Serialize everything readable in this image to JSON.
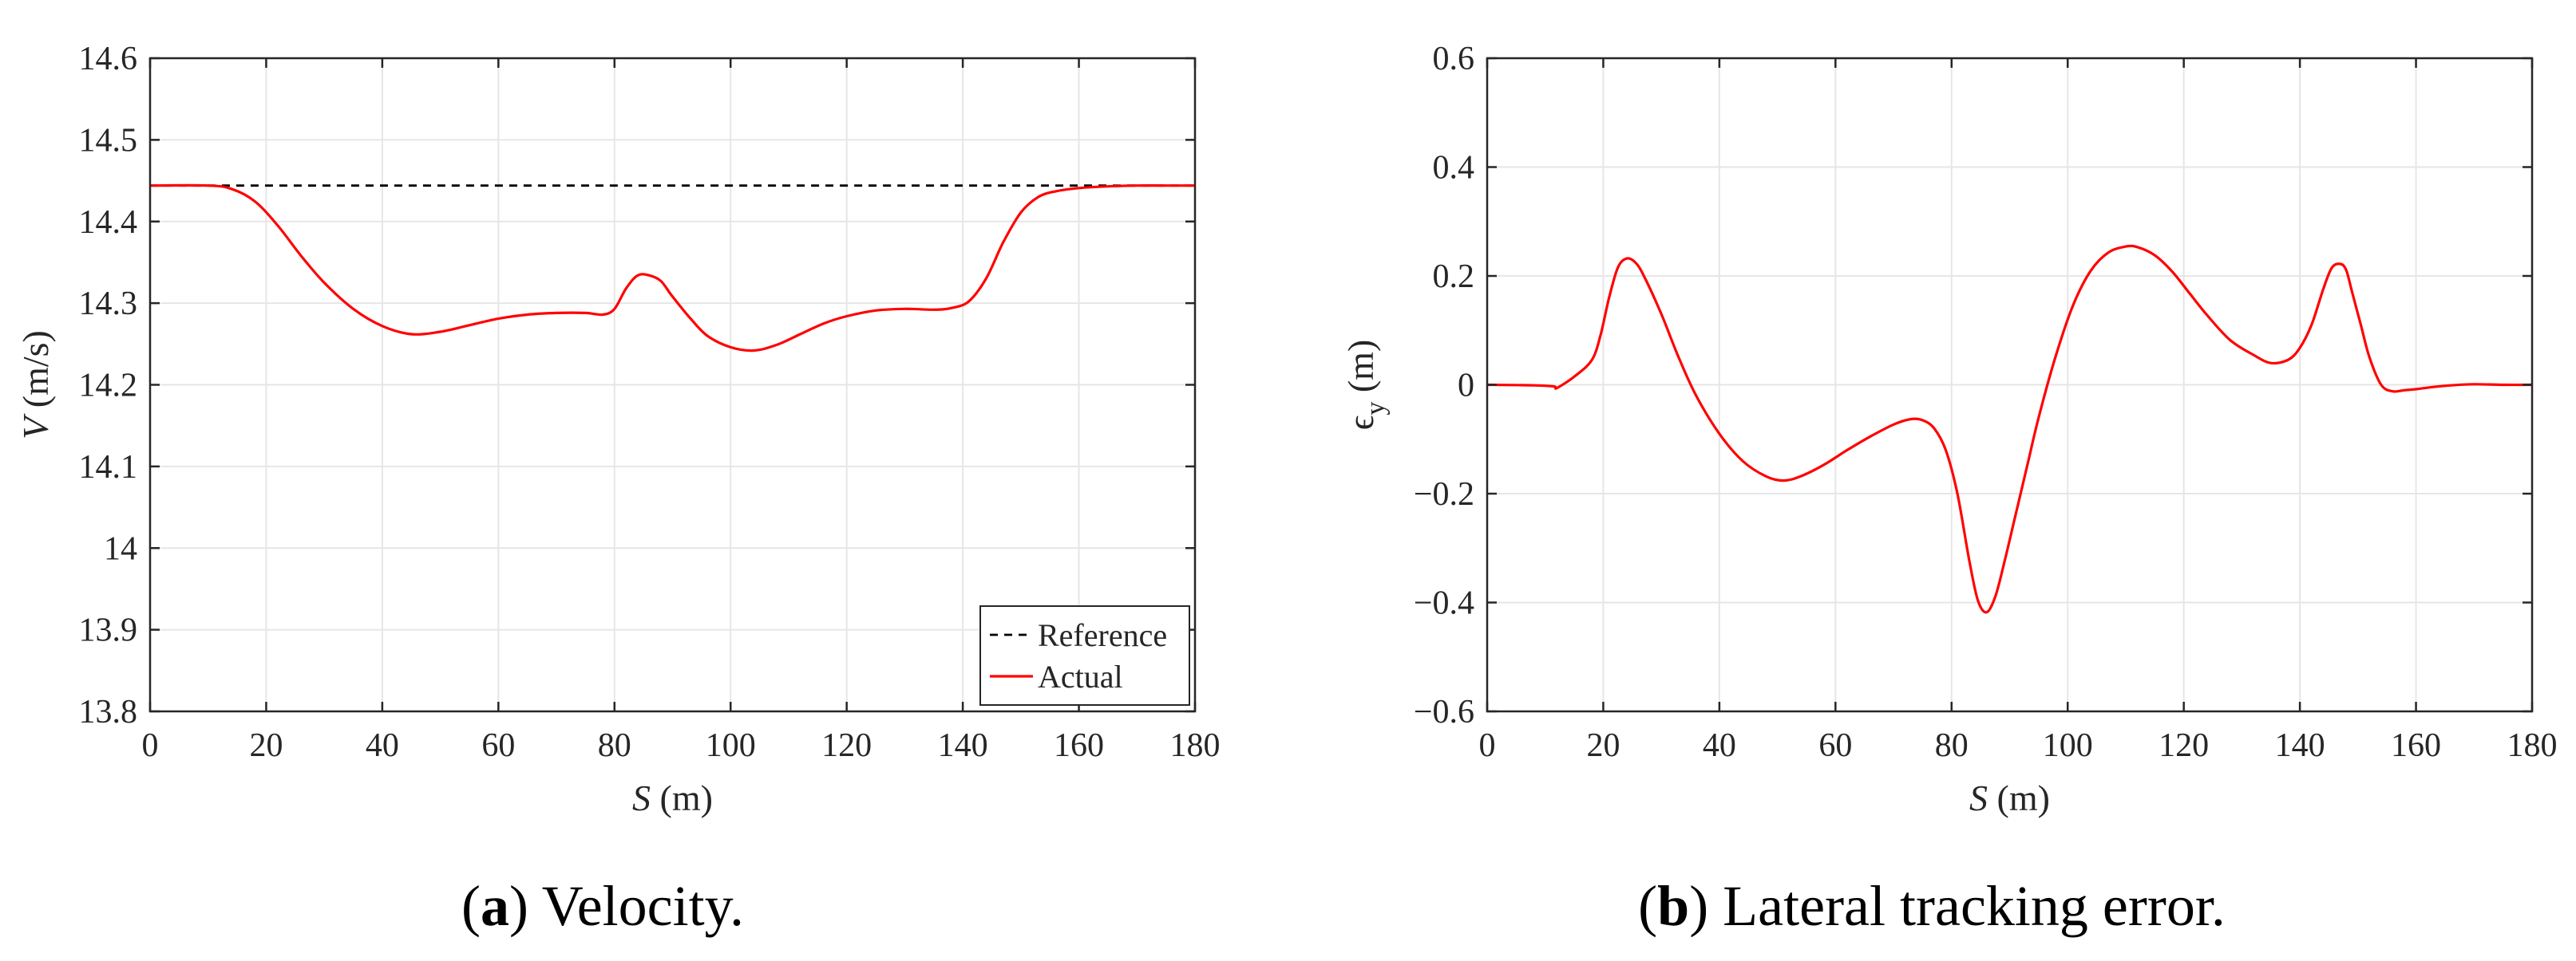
{
  "chart_data": [
    {
      "type": "line",
      "caption": {
        "letter": "a",
        "open": "(",
        "close": ")",
        "text": " Velocity."
      },
      "xlabel": {
        "var": "S",
        "unit": " (m)"
      },
      "ylabel": {
        "var": "V",
        "unit": " (m/s)"
      },
      "xlim": [
        0,
        180
      ],
      "ylim": [
        13.8,
        14.6
      ],
      "xticks": [
        0,
        20,
        40,
        60,
        80,
        100,
        120,
        140,
        160,
        180
      ],
      "yticks": [
        13.8,
        13.9,
        14,
        14.1,
        14.2,
        14.3,
        14.4,
        14.5,
        14.6
      ],
      "xtick_labels": [
        "0",
        "20",
        "40",
        "60",
        "80",
        "100",
        "120",
        "140",
        "160",
        "180"
      ],
      "ytick_labels": [
        "13.8",
        "13.9",
        "14",
        "14.1",
        "14.2",
        "14.3",
        "14.4",
        "14.5",
        "14.6"
      ],
      "grid": true,
      "legend": {
        "position": "bottom-right",
        "entries": [
          "Reference",
          "Actual"
        ]
      },
      "series": [
        {
          "name": "Reference",
          "color": "#000000",
          "style": "dashed",
          "x": [
            0,
            180
          ],
          "y": [
            14.444,
            14.444
          ]
        },
        {
          "name": "Actual",
          "color": "#ff0000",
          "style": "solid",
          "x": [
            0,
            10,
            14,
            18,
            22,
            26,
            30,
            35,
            40,
            45,
            50,
            55,
            60,
            65,
            70,
            75,
            78,
            80,
            82,
            84,
            86,
            88,
            90,
            93,
            96,
            100,
            104,
            108,
            112,
            116,
            120,
            125,
            130,
            135,
            138,
            141,
            144,
            147,
            150,
            153,
            156,
            160,
            165,
            170,
            175,
            180
          ],
          "y": [
            14.444,
            14.444,
            14.44,
            14.425,
            14.395,
            14.358,
            14.325,
            14.293,
            14.272,
            14.262,
            14.265,
            14.273,
            14.281,
            14.286,
            14.288,
            14.288,
            14.286,
            14.293,
            14.318,
            14.334,
            14.334,
            14.327,
            14.308,
            14.282,
            14.26,
            14.246,
            14.242,
            14.249,
            14.262,
            14.275,
            14.284,
            14.291,
            14.293,
            14.292,
            14.294,
            14.302,
            14.33,
            14.375,
            14.411,
            14.43,
            14.437,
            14.441,
            14.443,
            14.444,
            14.444,
            14.444
          ]
        }
      ]
    },
    {
      "type": "line",
      "caption": {
        "letter": "b",
        "open": "(",
        "close": ")",
        "text": " Lateral tracking error."
      },
      "xlabel": {
        "var": "S",
        "unit": " (m)"
      },
      "ylabel": {
        "var": "ϵ",
        "sub": "y",
        "unit": " (m)"
      },
      "xlim": [
        0,
        180
      ],
      "ylim": [
        -0.6,
        0.6
      ],
      "xticks": [
        0,
        20,
        40,
        60,
        80,
        100,
        120,
        140,
        160,
        180
      ],
      "yticks": [
        -0.6,
        -0.4,
        -0.2,
        0,
        0.2,
        0.4,
        0.6
      ],
      "xtick_labels": [
        "0",
        "20",
        "40",
        "60",
        "80",
        "100",
        "120",
        "140",
        "160",
        "180"
      ],
      "ytick_labels": [
        "−0.6",
        "−0.4",
        "−0.2",
        "0",
        "0.2",
        "0.4",
        "0.6"
      ],
      "grid": true,
      "legend": null,
      "series": [
        {
          "name": "ϵ_y",
          "color": "#ff0000",
          "style": "solid",
          "x": [
            0,
            8,
            11.5,
            12,
            15,
            18,
            19.5,
            21,
            22.5,
            24,
            25.5,
            27,
            30,
            33,
            36,
            40,
            44,
            48,
            51,
            54,
            58,
            62,
            66,
            70,
            73,
            75,
            77,
            79,
            81,
            83,
            84.5,
            86,
            87.5,
            89,
            91,
            93,
            95,
            98,
            101,
            104,
            107,
            110,
            112,
            115,
            118,
            121,
            124,
            128,
            132,
            135,
            138,
            140,
            142,
            144,
            145.5,
            147,
            148,
            149,
            150.5,
            152,
            154,
            156,
            158,
            160,
            163,
            166,
            170,
            175,
            180
          ],
          "y": [
            0,
            -0.001,
            -0.003,
            -0.006,
            0.015,
            0.045,
            0.09,
            0.16,
            0.215,
            0.232,
            0.225,
            0.2,
            0.13,
            0.05,
            -0.02,
            -0.09,
            -0.14,
            -0.168,
            -0.176,
            -0.168,
            -0.147,
            -0.12,
            -0.095,
            -0.073,
            -0.063,
            -0.065,
            -0.08,
            -0.12,
            -0.2,
            -0.32,
            -0.395,
            -0.418,
            -0.39,
            -0.33,
            -0.24,
            -0.15,
            -0.06,
            0.055,
            0.148,
            0.21,
            0.243,
            0.254,
            0.253,
            0.238,
            0.208,
            0.168,
            0.128,
            0.082,
            0.055,
            0.04,
            0.046,
            0.068,
            0.11,
            0.175,
            0.215,
            0.222,
            0.21,
            0.17,
            0.11,
            0.05,
            0.0,
            -0.012,
            -0.01,
            -0.008,
            -0.004,
            -0.001,
            0.001,
            0.0,
            0.0
          ]
        }
      ]
    }
  ]
}
